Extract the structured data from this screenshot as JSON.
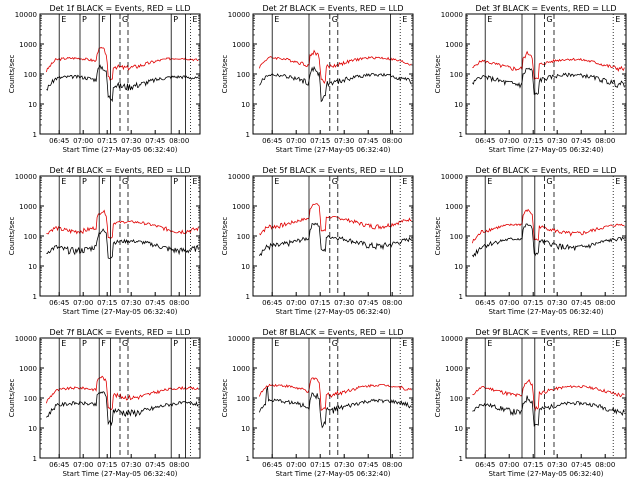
{
  "colors": {
    "events": "#000000",
    "lld": "#e00000",
    "axis": "#000000"
  },
  "common": {
    "ylabel": "Counts/sec",
    "xlabel_prefix": "Start Time (27-May-05 06:32:40)",
    "x_ticks": [
      "06:45",
      "07:00",
      "07:15",
      "07:30",
      "07:45",
      "08:00"
    ],
    "y_ticks": [
      "1",
      "10",
      "100",
      "1000",
      "10000"
    ],
    "y_scale": "log"
  },
  "chart_data": [
    {
      "title": "Det 1f BLACK = Events, RED = LLD",
      "type": "line",
      "events_level": 60,
      "lld_level": 250,
      "markers": [
        {
          "t": 0.12,
          "style": "solid",
          "label": "E"
        },
        {
          "t": 0.25,
          "style": "solid",
          "label": "P"
        },
        {
          "t": 0.37,
          "style": "solid",
          "label": "F"
        },
        {
          "t": 0.44,
          "style": "solid",
          "label": ""
        },
        {
          "t": 0.5,
          "style": "dashed",
          "label": "G"
        },
        {
          "t": 0.55,
          "style": "dashed",
          "label": ""
        },
        {
          "t": 0.82,
          "style": "solid",
          "label": "P"
        },
        {
          "t": 0.91,
          "style": "solid",
          "label": ""
        },
        {
          "t": 0.94,
          "style": "dotted",
          "label": "E"
        }
      ]
    },
    {
      "title": "Det 2f BLACK = Events, RED = LLD",
      "type": "line",
      "events_level": 70,
      "lld_level": 260,
      "markers": [
        {
          "t": 0.12,
          "style": "solid",
          "label": "E"
        },
        {
          "t": 0.35,
          "style": "solid",
          "label": ""
        },
        {
          "t": 0.48,
          "style": "dashed",
          "label": "G"
        },
        {
          "t": 0.53,
          "style": "dashed",
          "label": ""
        },
        {
          "t": 0.86,
          "style": "solid",
          "label": ""
        },
        {
          "t": 0.92,
          "style": "dotted",
          "label": "E"
        }
      ]
    },
    {
      "title": "Det 3f BLACK = Events, RED = LLD",
      "type": "line",
      "events_level": 70,
      "lld_level": 230,
      "markers": [
        {
          "t": 0.12,
          "style": "solid",
          "label": "E"
        },
        {
          "t": 0.35,
          "style": "solid",
          "label": ""
        },
        {
          "t": 0.43,
          "style": "solid",
          "label": ""
        },
        {
          "t": 0.49,
          "style": "dashed",
          "label": "G"
        },
        {
          "t": 0.55,
          "style": "dashed",
          "label": ""
        },
        {
          "t": 0.92,
          "style": "dotted",
          "label": "E"
        }
      ]
    },
    {
      "title": "Det 4f BLACK = Events, RED = LLD",
      "type": "line",
      "events_level": 50,
      "lld_level": 220,
      "markers": [
        {
          "t": 0.12,
          "style": "solid",
          "label": "E"
        },
        {
          "t": 0.25,
          "style": "solid",
          "label": "P"
        },
        {
          "t": 0.37,
          "style": "solid",
          "label": "F"
        },
        {
          "t": 0.44,
          "style": "solid",
          "label": ""
        },
        {
          "t": 0.5,
          "style": "dashed",
          "label": "G"
        },
        {
          "t": 0.55,
          "style": "dashed",
          "label": ""
        },
        {
          "t": 0.82,
          "style": "solid",
          "label": "P"
        },
        {
          "t": 0.91,
          "style": "solid",
          "label": ""
        },
        {
          "t": 0.94,
          "style": "dotted",
          "label": "E"
        }
      ]
    },
    {
      "title": "Det 5f BLACK = Events, RED = LLD",
      "type": "line",
      "events_level": 70,
      "lld_level": 320,
      "markers": [
        {
          "t": 0.12,
          "style": "solid",
          "label": "E"
        },
        {
          "t": 0.35,
          "style": "solid",
          "label": ""
        },
        {
          "t": 0.48,
          "style": "dashed",
          "label": "G"
        },
        {
          "t": 0.53,
          "style": "dashed",
          "label": ""
        },
        {
          "t": 0.86,
          "style": "solid",
          "label": ""
        },
        {
          "t": 0.92,
          "style": "dotted",
          "label": "E"
        }
      ]
    },
    {
      "title": "Det 6f BLACK = Events, RED = LLD",
      "type": "line",
      "events_level": 60,
      "lld_level": 180,
      "markers": [
        {
          "t": 0.12,
          "style": "solid",
          "label": "E"
        },
        {
          "t": 0.35,
          "style": "solid",
          "label": ""
        },
        {
          "t": 0.43,
          "style": "solid",
          "label": ""
        },
        {
          "t": 0.49,
          "style": "dashed",
          "label": "G"
        },
        {
          "t": 0.55,
          "style": "dashed",
          "label": ""
        },
        {
          "t": 0.92,
          "style": "dotted",
          "label": "E"
        }
      ]
    },
    {
      "title": "Det 7f BLACK = Events, RED = LLD",
      "type": "line",
      "events_level": 50,
      "lld_level": 160,
      "markers": [
        {
          "t": 0.12,
          "style": "solid",
          "label": "E"
        },
        {
          "t": 0.25,
          "style": "solid",
          "label": "P"
        },
        {
          "t": 0.37,
          "style": "solid",
          "label": "F"
        },
        {
          "t": 0.44,
          "style": "solid",
          "label": ""
        },
        {
          "t": 0.5,
          "style": "dashed",
          "label": "G"
        },
        {
          "t": 0.55,
          "style": "dashed",
          "label": ""
        },
        {
          "t": 0.82,
          "style": "solid",
          "label": "P"
        },
        {
          "t": 0.91,
          "style": "solid",
          "label": ""
        },
        {
          "t": 0.94,
          "style": "dotted",
          "label": "E"
        }
      ]
    },
    {
      "title": "Det 8f BLACK = Events, RED = LLD",
      "type": "line",
      "events_level": 60,
      "lld_level": 200,
      "markers": [
        {
          "t": 0.12,
          "style": "solid",
          "label": "E"
        },
        {
          "t": 0.35,
          "style": "solid",
          "label": ""
        },
        {
          "t": 0.48,
          "style": "dashed",
          "label": "G"
        },
        {
          "t": 0.53,
          "style": "dashed",
          "label": ""
        },
        {
          "t": 0.86,
          "style": "solid",
          "label": ""
        },
        {
          "t": 0.92,
          "style": "dotted",
          "label": "E"
        }
      ]
    },
    {
      "title": "Det 9f BLACK = Events, RED = LLD",
      "type": "line",
      "events_level": 50,
      "lld_level": 180,
      "markers": [
        {
          "t": 0.12,
          "style": "solid",
          "label": "E"
        },
        {
          "t": 0.35,
          "style": "solid",
          "label": ""
        },
        {
          "t": 0.43,
          "style": "solid",
          "label": ""
        },
        {
          "t": 0.49,
          "style": "dashed",
          "label": "G"
        },
        {
          "t": 0.55,
          "style": "dashed",
          "label": ""
        },
        {
          "t": 0.92,
          "style": "dotted",
          "label": "E"
        }
      ]
    }
  ]
}
